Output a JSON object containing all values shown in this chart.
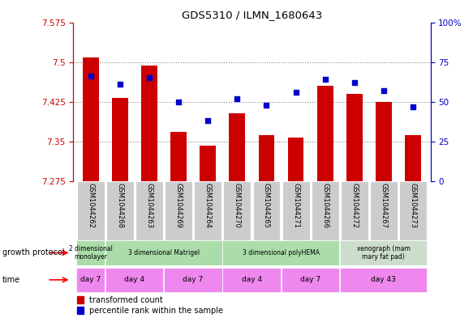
{
  "title": "GDS5310 / ILMN_1680643",
  "samples": [
    "GSM1044262",
    "GSM1044268",
    "GSM1044263",
    "GSM1044269",
    "GSM1044264",
    "GSM1044270",
    "GSM1044265",
    "GSM1044271",
    "GSM1044266",
    "GSM1044272",
    "GSM1044267",
    "GSM1044273"
  ],
  "transformed_count": [
    7.508,
    7.432,
    7.493,
    7.368,
    7.342,
    7.403,
    7.362,
    7.358,
    7.455,
    7.44,
    7.424,
    7.362
  ],
  "percentile_rank": [
    66,
    61,
    65,
    50,
    38,
    52,
    48,
    56,
    64,
    62,
    57,
    47
  ],
  "y_min": 7.275,
  "y_max": 7.575,
  "y_ticks": [
    7.275,
    7.35,
    7.425,
    7.5,
    7.575
  ],
  "right_y_ticks": [
    0,
    25,
    50,
    75,
    100
  ],
  "bar_color": "#CC0000",
  "scatter_color": "#0000CC",
  "dotted_line_color": "#888888",
  "left_axis_color": "#CC0000",
  "right_axis_color": "#0000CC",
  "growth_protocol_groups": [
    {
      "label": "2 dimensional\nmonolayer",
      "start": 0,
      "end": 1
    },
    {
      "label": "3 dimensional Matrigel",
      "start": 1,
      "end": 5
    },
    {
      "label": "3 dimensional polyHEMA",
      "start": 5,
      "end": 9
    },
    {
      "label": "xenograph (mam\nmary fat pad)",
      "start": 9,
      "end": 12
    }
  ],
  "time_groups": [
    {
      "label": "day 7",
      "start": 0,
      "end": 1
    },
    {
      "label": "day 4",
      "start": 1,
      "end": 3
    },
    {
      "label": "day 7",
      "start": 3,
      "end": 5
    },
    {
      "label": "day 4",
      "start": 5,
      "end": 7
    },
    {
      "label": "day 7",
      "start": 7,
      "end": 9
    },
    {
      "label": "day 43",
      "start": 9,
      "end": 12
    }
  ],
  "gp_color": "#aaddaa",
  "gp_xenograph_color": "#ccddcc",
  "time_color": "#ee88ee",
  "sample_box_color": "#cccccc",
  "bar_width": 0.55,
  "bar_bottom": 7.275
}
